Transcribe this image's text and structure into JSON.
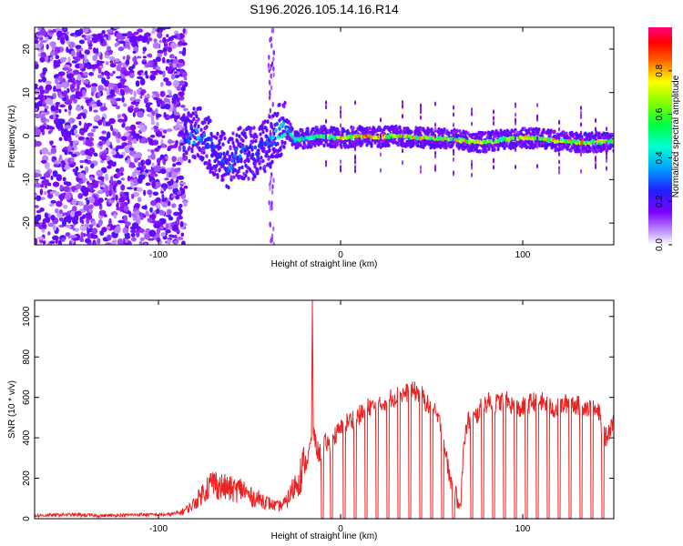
{
  "title": "S196.2026.105.14.16.R14",
  "colors": {
    "snr_line": "#ee2222",
    "frame": "#000000",
    "background": "#ffffff"
  },
  "chart_data": [
    {
      "type": "heatmap",
      "title": "S196.2026.105.14.16.R14",
      "xlabel": "Height of straight line (km)",
      "ylabel": "Frequency (Hz)",
      "xlim": [
        -168,
        150
      ],
      "ylim": [
        -25,
        25
      ],
      "x_ticks": [
        {
          "value": -100,
          "label": "-100"
        },
        {
          "value": 0,
          "label": "0"
        },
        {
          "value": 100,
          "label": "100"
        }
      ],
      "y_ticks": [
        {
          "value": -20,
          "label": "-20"
        },
        {
          "value": -10,
          "label": "-10"
        },
        {
          "value": 0,
          "label": "0"
        },
        {
          "value": 10,
          "label": "10"
        },
        {
          "value": 20,
          "label": "20"
        }
      ],
      "colorbar": {
        "label": "Normalized spectral amplitude",
        "range": [
          0,
          1
        ],
        "ticks": [
          {
            "value": 0.0,
            "label": "0.0"
          },
          {
            "value": 0.2,
            "label": "0.2"
          },
          {
            "value": 0.4,
            "label": "0.4"
          },
          {
            "value": 0.6,
            "label": "0.6"
          },
          {
            "value": 0.8,
            "label": "0.8"
          }
        ]
      },
      "signal_track": {
        "description_free": true,
        "x": [
          -85,
          -78,
          -70,
          -62,
          -55,
          -48,
          -40,
          -35,
          -30,
          -25,
          -20,
          -10,
          0,
          10,
          20,
          30,
          40,
          50,
          60,
          70,
          80,
          90,
          100,
          110,
          120,
          130,
          140,
          150
        ],
        "freq": [
          -1,
          1,
          -3,
          -6,
          -4,
          -4,
          -2,
          1,
          2,
          -1,
          -0.5,
          0,
          -0.5,
          0,
          -0.2,
          0,
          -0.3,
          -0.5,
          -0.6,
          -1.2,
          -1.4,
          -0.8,
          -0.4,
          -0.6,
          -1.2,
          -1.4,
          -1.4,
          -1.2
        ],
        "amplitude": [
          0.3,
          0.45,
          0.3,
          0.35,
          0.35,
          0.3,
          0.3,
          0.5,
          0.5,
          0.55,
          0.6,
          0.7,
          0.85,
          0.9,
          0.9,
          0.88,
          0.85,
          0.85,
          0.8,
          0.88,
          0.85,
          0.75,
          0.85,
          0.8,
          0.85,
          0.88,
          0.85,
          0.8
        ]
      }
    },
    {
      "type": "line",
      "xlabel": "Height of straight line (km)",
      "ylabel": "SNR (10 * v/v)",
      "xlim": [
        -168,
        150
      ],
      "ylim": [
        0,
        1080
      ],
      "x_ticks": [
        {
          "value": -100,
          "label": "-100"
        },
        {
          "value": 0,
          "label": "0"
        },
        {
          "value": 100,
          "label": "100"
        }
      ],
      "y_ticks": [
        {
          "value": 0,
          "label": "0"
        },
        {
          "value": 200,
          "label": "200"
        },
        {
          "value": 400,
          "label": "400"
        },
        {
          "value": 600,
          "label": "600"
        },
        {
          "value": 800,
          "label": "800"
        },
        {
          "value": 1000,
          "label": "1000"
        }
      ],
      "series": [
        {
          "name": "SNR",
          "x": [
            -168,
            -150,
            -130,
            -110,
            -95,
            -88,
            -82,
            -78,
            -74,
            -70,
            -66,
            -62,
            -58,
            -54,
            -50,
            -46,
            -42,
            -38,
            -34,
            -30,
            -26,
            -22,
            -18,
            -16,
            -15.5,
            -15,
            -14,
            -12,
            -10,
            -8,
            -6,
            -4,
            -2,
            0,
            4,
            8,
            12,
            16,
            20,
            24,
            28,
            32,
            36,
            40,
            44,
            48,
            52,
            54,
            56,
            58,
            60,
            62,
            64,
            66,
            68,
            70,
            74,
            78,
            82,
            86,
            90,
            94,
            98,
            102,
            106,
            110,
            114,
            118,
            122,
            126,
            130,
            134,
            138,
            142,
            144,
            146,
            148,
            150
          ],
          "y": [
            15,
            20,
            15,
            20,
            20,
            30,
            60,
            100,
            150,
            180,
            160,
            150,
            140,
            150,
            110,
            100,
            90,
            70,
            60,
            80,
            150,
            220,
            300,
            380,
            1060,
            450,
            380,
            320,
            340,
            380,
            360,
            400,
            420,
            440,
            480,
            500,
            520,
            560,
            540,
            580,
            600,
            610,
            620,
            630,
            620,
            560,
            520,
            480,
            440,
            300,
            200,
            140,
            100,
            90,
            400,
            480,
            500,
            560,
            580,
            570,
            590,
            560,
            540,
            560,
            580,
            580,
            560,
            540,
            560,
            580,
            560,
            560,
            540,
            520,
            420,
            400,
            450,
            500
          ],
          "gap_dips_at_x": [
            -10,
            -5,
            2,
            8,
            14,
            20,
            26,
            32,
            38,
            44,
            50,
            56,
            62,
            72,
            78,
            84,
            90,
            96,
            102,
            108,
            114,
            120,
            126,
            132,
            138,
            144
          ]
        }
      ]
    }
  ]
}
